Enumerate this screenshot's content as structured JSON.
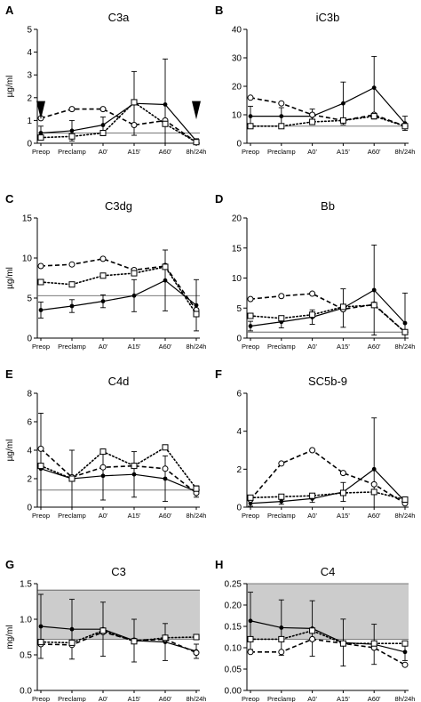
{
  "figure": {
    "background": "#ffffff",
    "line_color": "#000000",
    "band_color": "#cccccc"
  },
  "chart_data": [
    {
      "panel": "A",
      "title": "C3a",
      "type": "line",
      "ylabel": "µg/ml",
      "ylim": [
        0,
        5
      ],
      "yticks": [
        0,
        1,
        2,
        3,
        4,
        5
      ],
      "categories": [
        "Preop",
        "Preclamp",
        "A0'",
        "A15'",
        "A60'",
        "8h/24h"
      ],
      "reference_line": 0.45,
      "arrows": [
        0,
        5
      ],
      "series": [
        {
          "style": "solid",
          "marker": "filled-circle",
          "values": [
            0.45,
            0.55,
            0.8,
            1.75,
            1.7,
            0.1
          ],
          "error": [
            0.3,
            0.45,
            0.35,
            1.4,
            2.0,
            0.1
          ]
        },
        {
          "style": "dashed",
          "marker": "open-circle",
          "values": [
            1.1,
            1.5,
            1.5,
            0.8,
            1.0,
            0.05
          ],
          "error": null
        },
        {
          "style": "dotted",
          "marker": "open-square",
          "values": [
            0.25,
            0.3,
            0.45,
            1.8,
            0.85,
            0.05
          ],
          "error": null
        }
      ]
    },
    {
      "panel": "B",
      "title": "iC3b",
      "type": "line",
      "ylabel": "",
      "ylim": [
        0,
        40
      ],
      "yticks": [
        0,
        10,
        20,
        30,
        40
      ],
      "categories": [
        "Preop",
        "Preclamp",
        "A0'",
        "A15'",
        "A60'",
        "8h/24h"
      ],
      "reference_line": 6,
      "series": [
        {
          "style": "solid",
          "marker": "filled-circle",
          "values": [
            9.5,
            9.5,
            9.5,
            14,
            19.5,
            7
          ],
          "error": [
            3.5,
            3,
            2.5,
            7.5,
            11,
            2.5
          ]
        },
        {
          "style": "dashed",
          "marker": "open-circle",
          "values": [
            16,
            14,
            10,
            8,
            10,
            6
          ],
          "error": null
        },
        {
          "style": "dotted",
          "marker": "open-square",
          "values": [
            6,
            6,
            7.5,
            8,
            9.5,
            6
          ],
          "error": null
        }
      ]
    },
    {
      "panel": "C",
      "title": "C3dg",
      "type": "line",
      "ylabel": "µg/ml",
      "ylim": [
        0,
        15
      ],
      "yticks": [
        0,
        5,
        10,
        15
      ],
      "categories": [
        "Preop",
        "Preclamp",
        "A0'",
        "A15'",
        "A60'",
        "8h/24h"
      ],
      "reference_line": 5.3,
      "series": [
        {
          "style": "solid",
          "marker": "filled-circle",
          "values": [
            3.5,
            4,
            4.6,
            5.3,
            7.2,
            4.1
          ],
          "error": [
            1,
            0.8,
            0.8,
            2,
            3.8,
            3.2
          ]
        },
        {
          "style": "dashed",
          "marker": "open-circle",
          "values": [
            9,
            9.2,
            9.9,
            8.5,
            9,
            3.5
          ],
          "error": null
        },
        {
          "style": "dotted",
          "marker": "open-square",
          "values": [
            7,
            6.7,
            7.8,
            8.1,
            8.9,
            3
          ],
          "error": null
        }
      ]
    },
    {
      "panel": "D",
      "title": "Bb",
      "type": "line",
      "ylabel": "",
      "ylim": [
        0,
        20
      ],
      "yticks": [
        0,
        5,
        10,
        15,
        20
      ],
      "categories": [
        "Preop",
        "Preclamp",
        "A0'",
        "A15'",
        "A60'",
        "8h/24h"
      ],
      "reference_line": 1,
      "series": [
        {
          "style": "solid",
          "marker": "filled-circle",
          "values": [
            2,
            2.7,
            3.5,
            5,
            8,
            2.5
          ],
          "error": [
            0.8,
            1,
            1.2,
            3.2,
            7.5,
            5
          ]
        },
        {
          "style": "dashed",
          "marker": "open-circle",
          "values": [
            6.5,
            7,
            7.4,
            4.8,
            5.6,
            1
          ],
          "error": null
        },
        {
          "style": "dotted",
          "marker": "open-square",
          "values": [
            3.7,
            3.3,
            3.9,
            5.2,
            5.5,
            1
          ],
          "error": null
        }
      ]
    },
    {
      "panel": "E",
      "title": "C4d",
      "type": "line",
      "ylabel": "µg/ml",
      "ylim": [
        0,
        8
      ],
      "yticks": [
        0,
        2,
        4,
        6,
        8
      ],
      "categories": [
        "Preop",
        "Preclamp",
        "A0'",
        "A15'",
        "A60'",
        "8h/24h"
      ],
      "reference_line": 1.2,
      "series": [
        {
          "style": "solid",
          "marker": "filled-circle",
          "values": [
            2.7,
            2.0,
            2.2,
            2.3,
            2.0,
            1.1
          ],
          "error": [
            3.9,
            2.0,
            1.7,
            1.6,
            1.6,
            0.4
          ]
        },
        {
          "style": "dashed",
          "marker": "open-circle",
          "values": [
            4.1,
            2.1,
            2.8,
            2.9,
            2.7,
            1.0
          ],
          "error": null
        },
        {
          "style": "dotted",
          "marker": "open-square",
          "values": [
            2.9,
            2.0,
            3.9,
            2.9,
            4.2,
            1.3
          ],
          "error": null
        }
      ]
    },
    {
      "panel": "F",
      "title": "SC5b-9",
      "type": "line",
      "ylabel": "",
      "ylim": [
        0,
        6
      ],
      "yticks": [
        0,
        2,
        4,
        6
      ],
      "categories": [
        "Preop",
        "Preclamp",
        "A0'",
        "A15'",
        "A60'",
        "8h/24h"
      ],
      "reference_line": null,
      "series": [
        {
          "style": "solid",
          "marker": "filled-circle",
          "values": [
            0.2,
            0.3,
            0.45,
            0.8,
            2.0,
            0.3
          ],
          "error": [
            0.15,
            0.15,
            0.2,
            0.5,
            2.7,
            0.15
          ]
        },
        {
          "style": "dashed",
          "marker": "open-circle",
          "values": [
            0.4,
            2.3,
            3.0,
            1.8,
            1.2,
            0.2
          ],
          "error": null
        },
        {
          "style": "dotted",
          "marker": "open-square",
          "values": [
            0.5,
            0.55,
            0.6,
            0.75,
            0.8,
            0.4
          ],
          "error": null
        }
      ]
    },
    {
      "panel": "G",
      "title": "C3",
      "type": "line",
      "ylabel": "mg/ml",
      "ylim": [
        0,
        1.5
      ],
      "yticks": [
        0.0,
        0.5,
        1.0,
        1.5
      ],
      "categories": [
        "Preop",
        "Preclamp",
        "A0'",
        "A15'",
        "A60'",
        "8h/24h"
      ],
      "reference_band": [
        0.72,
        1.41
      ],
      "series": [
        {
          "style": "solid",
          "marker": "filled-circle",
          "values": [
            0.9,
            0.86,
            0.86,
            0.7,
            0.68,
            0.55
          ],
          "error": [
            0.45,
            0.42,
            0.38,
            0.3,
            0.26,
            0.1
          ]
        },
        {
          "style": "dashed",
          "marker": "open-circle",
          "values": [
            0.65,
            0.64,
            0.82,
            0.7,
            0.72,
            0.53
          ],
          "error": null
        },
        {
          "style": "dotted",
          "marker": "open-square",
          "values": [
            0.68,
            0.67,
            0.84,
            0.69,
            0.74,
            0.75
          ],
          "error": null
        }
      ]
    },
    {
      "panel": "H",
      "title": "C4",
      "type": "line",
      "ylabel": "",
      "ylim": [
        0,
        0.25
      ],
      "yticks": [
        0.0,
        0.05,
        0.1,
        0.15,
        0.2,
        0.25
      ],
      "categories": [
        "Preop",
        "Preclamp",
        "A0'",
        "A15'",
        "A60'",
        "8h/24h"
      ],
      "reference_band": [
        0.12,
        0.25
      ],
      "series": [
        {
          "style": "solid",
          "marker": "filled-circle",
          "values": [
            0.163,
            0.147,
            0.145,
            0.112,
            0.108,
            0.09
          ],
          "error": [
            0.067,
            0.065,
            0.065,
            0.055,
            0.047,
            0.02
          ]
        },
        {
          "style": "dashed",
          "marker": "open-circle",
          "values": [
            0.09,
            0.09,
            0.12,
            0.11,
            0.1,
            0.06
          ],
          "error": null
        },
        {
          "style": "dotted",
          "marker": "open-square",
          "values": [
            0.12,
            0.12,
            0.14,
            0.11,
            0.11,
            0.11
          ],
          "error": null
        }
      ]
    }
  ]
}
